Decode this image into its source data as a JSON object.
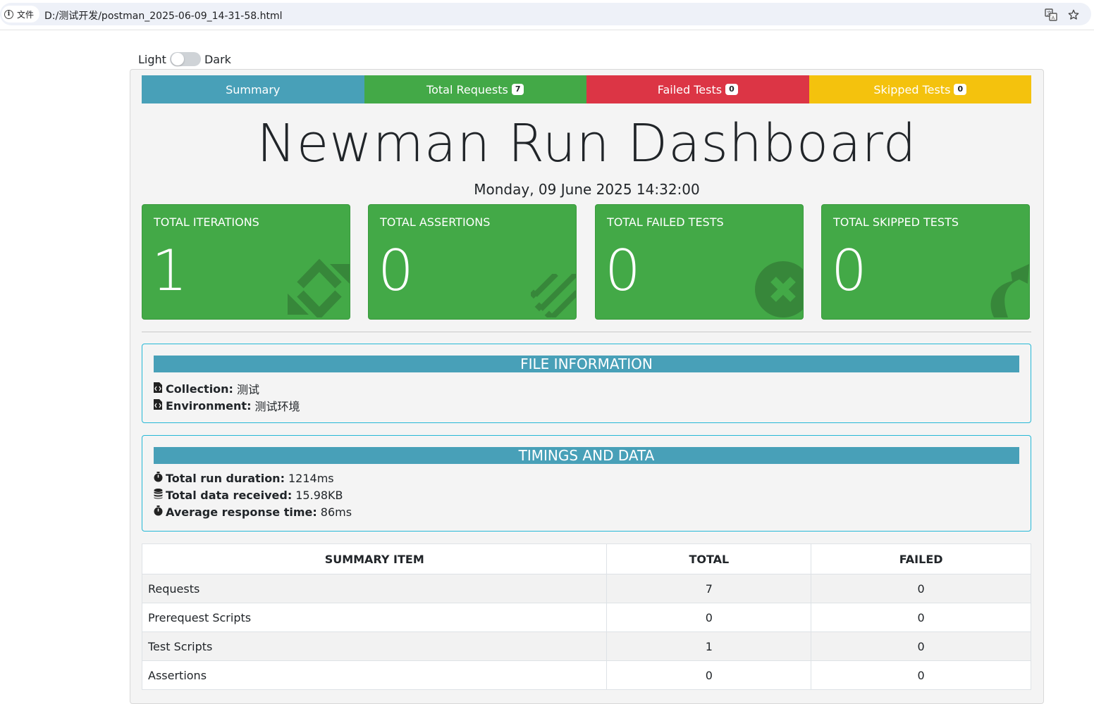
{
  "browser": {
    "info_label": "文件",
    "url": "D:/测试开发/postman_2025-06-09_14-31-58.html"
  },
  "theme_toggle": {
    "light_label": "Light",
    "dark_label": "Dark"
  },
  "tabs": [
    {
      "label": "Summary",
      "badge": null,
      "color": "#48a0b8"
    },
    {
      "label": "Total Requests",
      "badge": "7",
      "color": "#43a947"
    },
    {
      "label": "Failed Tests",
      "badge": "0",
      "color": "#dc3545"
    },
    {
      "label": "Skipped Tests",
      "badge": "0",
      "color": "#f4c20d"
    }
  ],
  "header": {
    "title": "Newman Run Dashboard",
    "date": "Monday, 09 June 2025 14:32:00"
  },
  "cards": [
    {
      "label": "Total Iterations",
      "value": "1",
      "icon": "sync-icon"
    },
    {
      "label": "Total Assertions",
      "value": "0",
      "icon": "tasks-icon"
    },
    {
      "label": "Total Failed Tests",
      "value": "0",
      "icon": "times-circle-icon"
    },
    {
      "label": "Total Skipped Tests",
      "value": "0",
      "icon": "share-icon"
    }
  ],
  "file_info": {
    "heading": "File Information",
    "collection_label": "Collection:",
    "collection_value": "测试",
    "environment_label": "Environment:",
    "environment_value": "测试环境"
  },
  "timings": {
    "heading": "Timings and Data",
    "run_duration_label": "Total run duration:",
    "run_duration_value": "1214ms",
    "data_received_label": "Total data received:",
    "data_received_value": "15.98KB",
    "avg_response_label": "Average response time:",
    "avg_response_value": "86ms"
  },
  "summary_table": {
    "headers": [
      "Summary Item",
      "Total",
      "Failed"
    ],
    "rows": [
      [
        "Requests",
        "7",
        "0"
      ],
      [
        "Prerequest Scripts",
        "0",
        "0"
      ],
      [
        "Test Scripts",
        "1",
        "0"
      ],
      [
        "Assertions",
        "0",
        "0"
      ]
    ]
  }
}
